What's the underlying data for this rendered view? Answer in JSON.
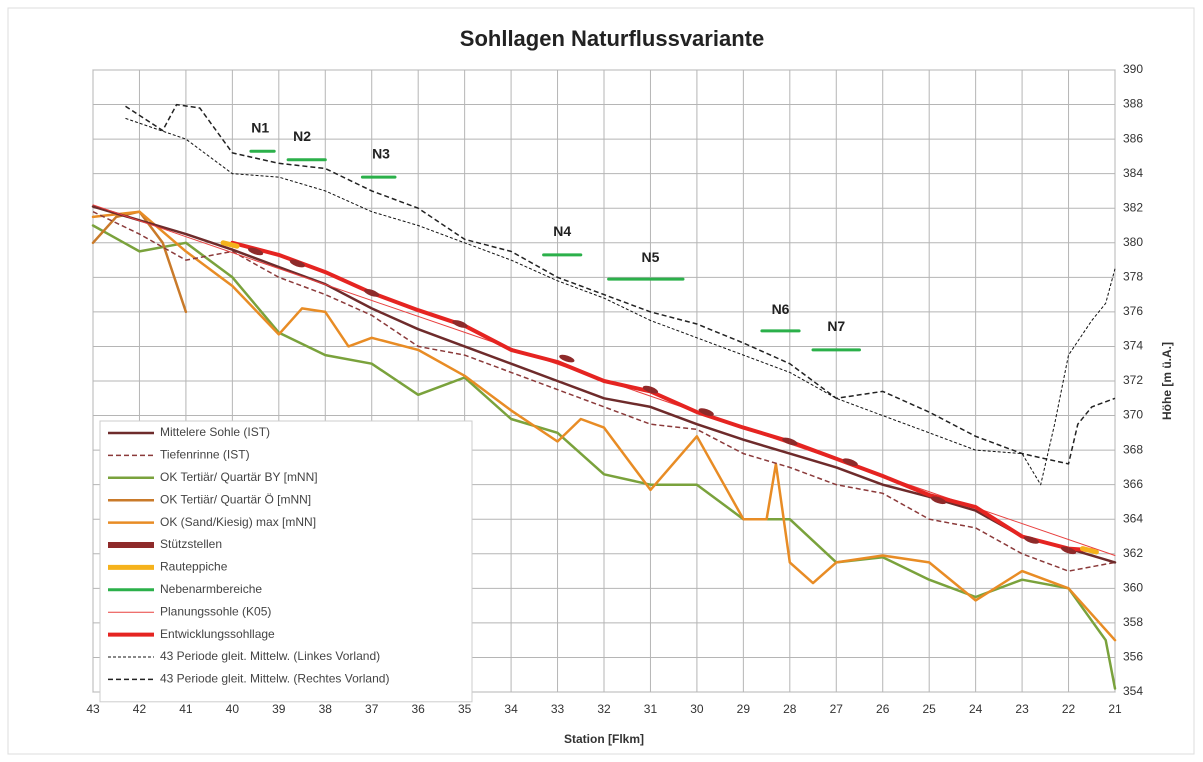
{
  "chart_data": {
    "type": "line",
    "title": "Sohllagen Naturflussvariante",
    "xlabel": "Station [Flkm]",
    "ylabel": "Höhe [m ü.A.]",
    "xlim": [
      43,
      21
    ],
    "ylim": [
      354,
      390
    ],
    "xticks": [
      43,
      42,
      41,
      40,
      39,
      38,
      37,
      36,
      35,
      34,
      33,
      32,
      31,
      30,
      29,
      28,
      27,
      26,
      25,
      24,
      23,
      22,
      21
    ],
    "yticks": [
      354,
      356,
      358,
      360,
      362,
      364,
      366,
      368,
      370,
      372,
      374,
      376,
      378,
      380,
      382,
      384,
      386,
      388,
      390
    ],
    "grid": true,
    "legend": "lower left",
    "series": [
      {
        "name": "Mittelere Sohle (IST)",
        "color": "#6e2b2b",
        "width": 2.5,
        "x": [
          43,
          42,
          41,
          40,
          39,
          38,
          37,
          36,
          35,
          34,
          33,
          32,
          31,
          30,
          29,
          28,
          27,
          26,
          25,
          24,
          23,
          22,
          21
        ],
        "values": [
          382.1,
          381.3,
          380.5,
          379.6,
          378.6,
          377.6,
          376.2,
          375,
          374,
          373,
          372,
          371,
          370.5,
          369.5,
          368.6,
          367.8,
          367,
          366,
          365.3,
          364.5,
          363,
          362.3,
          361.5
        ]
      },
      {
        "name": "Tiefenrinne (IST)",
        "color": "#8b3a3a",
        "width": 1.5,
        "dash": "5,3",
        "x": [
          43,
          42,
          41,
          40,
          39,
          38,
          37,
          36,
          35,
          34,
          33,
          32,
          31,
          30,
          29,
          28,
          27,
          26,
          25,
          24,
          23,
          22,
          21
        ],
        "values": [
          381.8,
          380.5,
          379,
          379.5,
          378,
          377,
          375.8,
          374,
          373.5,
          372.5,
          371.5,
          370.5,
          369.5,
          369.2,
          367.8,
          367,
          366,
          365.5,
          364,
          363.5,
          362,
          361,
          361.5
        ]
      },
      {
        "name": "OK Tertiär/ Quartär BY [mNN]",
        "color": "#7aa23c",
        "width": 2.5,
        "x": [
          43,
          42,
          41,
          40,
          39,
          38,
          37,
          36,
          35,
          34,
          33,
          32,
          31,
          30,
          29,
          28,
          27,
          26,
          25,
          24,
          23,
          22,
          21.2,
          21
        ],
        "values": [
          381,
          379.5,
          380,
          378,
          374.8,
          373.5,
          373,
          371.2,
          372.2,
          369.8,
          369,
          366.6,
          366,
          366,
          364,
          364,
          361.5,
          361.8,
          360.5,
          359.5,
          360.5,
          360,
          357,
          354.2
        ]
      },
      {
        "name": "OK Tertiär/ Quartär Ö [mNN]",
        "color": "#c97a2a",
        "width": 2.5,
        "x": [
          43,
          42.5,
          42,
          41.5,
          41
        ],
        "values": [
          380,
          381.5,
          381.8,
          380,
          376
        ]
      },
      {
        "name": "OK (Sand/Kiesig) max [mNN]",
        "color": "#e88c25",
        "width": 2.5,
        "x": [
          43,
          42,
          41,
          40,
          39,
          38.5,
          38,
          37.5,
          37,
          36,
          35,
          34,
          33,
          32.5,
          32,
          31,
          30,
          29,
          28.5,
          28.3,
          28,
          27.5,
          27,
          26,
          25,
          24,
          23,
          22,
          21
        ],
        "values": [
          381.5,
          381.8,
          379.5,
          377.5,
          374.7,
          376.2,
          376,
          374,
          374.5,
          373.8,
          372.3,
          370.3,
          368.5,
          369.8,
          369.3,
          365.7,
          368.8,
          364,
          364,
          367.2,
          361.5,
          360.3,
          361.5,
          361.9,
          361.5,
          359.3,
          361,
          360,
          357
        ]
      },
      {
        "name": "Stützstellen",
        "color": "#8e2a2a",
        "width": 6,
        "style": "markers",
        "x": [
          39.5,
          38.6,
          37,
          35.1,
          32.8,
          31,
          29.8,
          28,
          26.7,
          24.8,
          22.8,
          22
        ],
        "values": [
          379.5,
          378.8,
          377.1,
          375.3,
          373.3,
          371.5,
          370.2,
          368.5,
          367.3,
          365.1,
          362.8,
          362.2
        ]
      },
      {
        "name": "Rauteppiche",
        "color": "#f5b21c",
        "width": 5,
        "x": [
          40.2,
          39.9,
          null,
          21.7,
          21.4
        ],
        "values": [
          380,
          379.8,
          null,
          362.3,
          362.1
        ]
      },
      {
        "name": "Nebenarmbereiche",
        "color": "#2bb04a",
        "width": 3,
        "x": [
          39.6,
          39.1,
          null,
          38.8,
          38,
          null,
          37.2,
          36.5,
          null,
          33.3,
          32.5,
          null,
          31.9,
          30.3,
          null,
          28.6,
          27.8,
          null,
          27.5,
          26.5
        ],
        "values": [
          385.3,
          385.3,
          null,
          384.8,
          384.8,
          null,
          383.8,
          383.8,
          null,
          379.3,
          379.3,
          null,
          377.9,
          377.9,
          null,
          374.9,
          374.9,
          null,
          373.8,
          373.8
        ]
      },
      {
        "name": "Planungssohle (K05)",
        "color": "#e8403f",
        "width": 1,
        "x": [
          43,
          21
        ],
        "values": [
          382.2,
          361.9
        ]
      },
      {
        "name": "Entwicklungssohllage",
        "color": "#e52421",
        "width": 4,
        "x": [
          40,
          39,
          38,
          37,
          36,
          35,
          34,
          33,
          32,
          31,
          30,
          29,
          28,
          27,
          26,
          25,
          24,
          23,
          22,
          21.5
        ],
        "values": [
          380,
          379.3,
          378.3,
          377.1,
          376.1,
          375.2,
          373.8,
          373.1,
          372,
          371.4,
          370.2,
          369.3,
          368.5,
          367.5,
          366.5,
          365.4,
          364.7,
          363,
          362.3,
          362.2
        ]
      },
      {
        "name": "43 Periode gleit. Mittelw. (Linkes Vorland)",
        "color": "#111111",
        "width": 1,
        "dash": "3,2",
        "x": [
          42.3,
          41,
          40,
          39,
          38,
          37,
          36,
          35,
          34,
          33,
          32,
          31,
          30,
          29,
          28,
          27,
          26,
          25,
          24,
          23,
          22.6,
          22.3,
          22,
          21.5,
          21.2,
          21
        ],
        "values": [
          387.2,
          386,
          384,
          383.8,
          383,
          381.8,
          381,
          380,
          379,
          377.8,
          376.8,
          375.5,
          374.5,
          373.5,
          372.5,
          371,
          370,
          369,
          368,
          367.8,
          366,
          369.5,
          373.5,
          375.5,
          376.5,
          378.5
        ]
      },
      {
        "name": "43 Periode gleit. Mittelw. (Rechtes Vorland)",
        "color": "#222222",
        "width": 1.5,
        "dash": "5,3",
        "x": [
          42.3,
          41.5,
          41.2,
          40.7,
          40,
          39,
          38,
          37,
          36,
          35,
          34,
          33,
          32,
          31,
          30,
          29,
          28,
          27,
          26,
          25,
          24,
          23,
          22,
          21.8,
          21.5,
          21
        ],
        "values": [
          387.9,
          386.5,
          388,
          387.8,
          385.2,
          384.6,
          384.3,
          383,
          382,
          380.2,
          379.5,
          378,
          377,
          376,
          375.3,
          374.2,
          373,
          371,
          371.4,
          370.2,
          368.8,
          367.8,
          367.2,
          369.5,
          370.5,
          371
        ]
      }
    ],
    "annotations": [
      {
        "text": "N1",
        "x": 39.4,
        "y": 386.6
      },
      {
        "text": "N2",
        "x": 38.5,
        "y": 386.1
      },
      {
        "text": "N3",
        "x": 36.8,
        "y": 385.1
      },
      {
        "text": "N4",
        "x": 32.9,
        "y": 380.6
      },
      {
        "text": "N5",
        "x": 31,
        "y": 379.1
      },
      {
        "text": "N6",
        "x": 28.2,
        "y": 376.1
      },
      {
        "text": "N7",
        "x": 27,
        "y": 375.1
      }
    ]
  }
}
